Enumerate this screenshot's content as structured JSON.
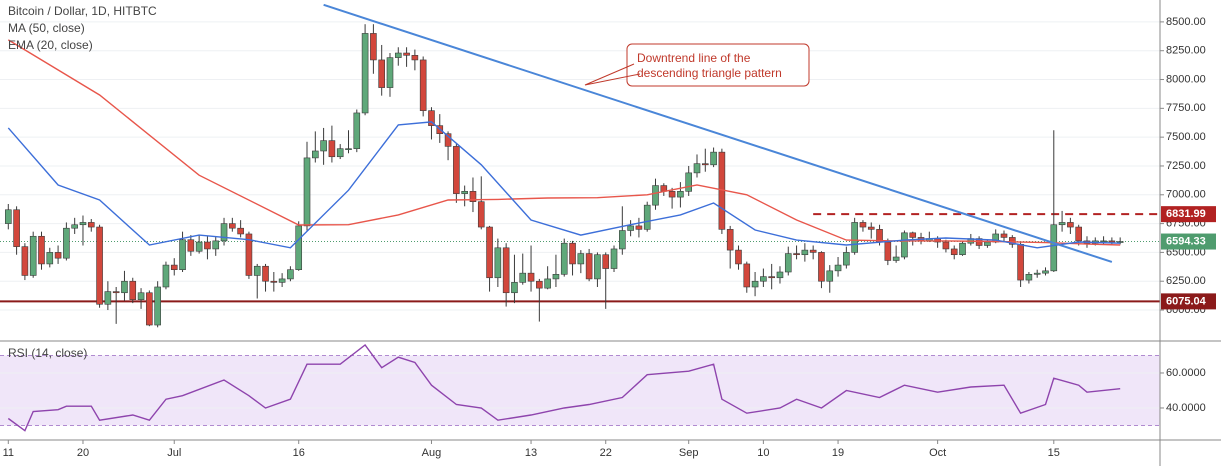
{
  "chart_data": [
    {
      "type": "candlestick",
      "title": "Bitcoin / Dollar, 1D, HITBTC",
      "x": [
        0,
        1,
        2,
        3,
        4,
        5,
        6,
        7,
        8,
        9,
        10,
        11,
        12,
        13,
        14,
        15,
        16,
        17,
        18,
        19,
        20,
        21,
        22,
        23,
        24,
        25,
        26,
        27,
        28,
        29,
        30,
        31,
        32,
        33,
        34,
        35,
        36,
        37,
        38,
        39,
        40,
        41,
        42,
        43,
        44,
        45,
        46,
        47,
        48,
        49,
        50,
        51,
        52,
        53,
        54,
        55,
        56,
        57,
        58,
        59,
        60,
        61,
        62,
        63,
        64,
        65,
        66,
        67,
        68,
        69,
        70,
        71,
        72,
        73,
        74,
        75,
        76,
        77,
        78,
        79,
        80,
        81,
        82,
        83,
        84,
        85,
        86,
        87,
        88,
        89,
        90,
        91,
        92,
        93,
        94,
        95,
        96,
        97,
        98,
        99,
        100,
        101,
        102,
        103,
        104,
        105,
        106,
        107,
        108,
        109,
        110,
        111,
        112,
        113,
        114,
        115,
        116,
        117,
        118,
        119,
        120,
        121,
        122,
        123,
        124,
        125,
        126,
        127,
        128,
        129,
        130,
        131,
        132,
        133,
        134
      ],
      "open": [
        6750,
        6870,
        6550,
        6300,
        6640,
        6400,
        6500,
        6450,
        6710,
        6740,
        6760,
        6720,
        6050,
        6160,
        6150,
        6250,
        6090,
        6150,
        5870,
        6200,
        6390,
        6350,
        6610,
        6510,
        6590,
        6530,
        6600,
        6750,
        6710,
        6660,
        6300,
        6380,
        6250,
        6240,
        6270,
        6350,
        6730,
        7320,
        7380,
        7470,
        7330,
        7400,
        7400,
        7710,
        8400,
        8170,
        7930,
        8190,
        8230,
        8210,
        8170,
        7730,
        7600,
        7530,
        7420,
        7010,
        7030,
        6940,
        6720,
        6280,
        6540,
        6150,
        6240,
        6320,
        6250,
        6190,
        6270,
        6310,
        6580,
        6400,
        6490,
        6270,
        6480,
        6360,
        6530,
        6690,
        6730,
        6700,
        6910,
        7080,
        7030,
        6980,
        7030,
        7190,
        7270,
        7260,
        7370,
        6700,
        6520,
        6400,
        6200,
        6250,
        6290,
        6280,
        6330,
        6490,
        6480,
        6520,
        6500,
        6250,
        6340,
        6390,
        6500,
        6760,
        6720,
        6700,
        6590,
        6430,
        6460,
        6670,
        6630,
        6600,
        6620,
        6590,
        6530,
        6480,
        6580,
        6620,
        6560,
        6590,
        6660,
        6630,
        6570,
        6260,
        6310,
        6320,
        6340,
        6740,
        6760,
        6720,
        6600,
        6580,
        6600,
        6600,
        6590
      ],
      "high": [
        6920,
        6900,
        6580,
        6680,
        6680,
        6540,
        6560,
        6760,
        6800,
        6820,
        6790,
        6740,
        6250,
        6200,
        6340,
        6280,
        6190,
        6170,
        6250,
        6420,
        6450,
        6680,
        6650,
        6650,
        6640,
        6640,
        6800,
        6800,
        6780,
        6680,
        6400,
        6400,
        6330,
        6320,
        6380,
        6770,
        7460,
        7550,
        7580,
        7600,
        7440,
        7560,
        7740,
        8480,
        8480,
        8300,
        8230,
        8280,
        8280,
        8260,
        8200,
        7760,
        7700,
        7550,
        7440,
        7080,
        7150,
        7160,
        6730,
        6620,
        6580,
        6480,
        6490,
        6560,
        6270,
        6380,
        6480,
        6620,
        6600,
        6520,
        6530,
        6500,
        6500,
        6560,
        6900,
        6780,
        6800,
        6940,
        7140,
        7100,
        7060,
        7110,
        7250,
        7350,
        7400,
        7410,
        7400,
        6730,
        6560,
        6420,
        6330,
        6360,
        6400,
        6380,
        6550,
        6560,
        6580,
        6560,
        6510,
        6390,
        6460,
        6550,
        6800,
        6780,
        6760,
        6740,
        6620,
        6560,
        6690,
        6680,
        6670,
        6680,
        6640,
        6610,
        6560,
        6600,
        6660,
        6640,
        6610,
        6700,
        6690,
        6650,
        6590,
        6330,
        6350,
        6370,
        7560,
        6860,
        6800,
        6740,
        6640,
        6630,
        6640,
        6630,
        6630
      ],
      "low": [
        6700,
        6480,
        6260,
        6280,
        6350,
        6370,
        6400,
        6430,
        6660,
        6560,
        6680,
        6020,
        6000,
        5880,
        6080,
        6060,
        6010,
        5860,
        5850,
        6180,
        6300,
        6330,
        6470,
        6490,
        6440,
        6470,
        6560,
        6680,
        6630,
        6270,
        6100,
        6160,
        6160,
        6200,
        6250,
        6340,
        6690,
        7280,
        7260,
        7280,
        7310,
        7360,
        7370,
        7690,
        8050,
        7860,
        7850,
        8120,
        8110,
        8080,
        7680,
        7480,
        7450,
        7300,
        6930,
        6900,
        6850,
        6700,
        6160,
        6200,
        6030,
        6060,
        6220,
        6160,
        5900,
        6180,
        6200,
        6290,
        6300,
        6320,
        6250,
        6200,
        6010,
        6330,
        6480,
        6640,
        6630,
        6680,
        6870,
        6990,
        6880,
        6890,
        6990,
        7150,
        7200,
        7240,
        6660,
        6360,
        6350,
        6150,
        6120,
        6200,
        6180,
        6230,
        6300,
        6440,
        6420,
        6440,
        6190,
        6150,
        6290,
        6360,
        6480,
        6680,
        6620,
        6560,
        6390,
        6410,
        6440,
        6560,
        6570,
        6590,
        6540,
        6500,
        6440,
        6470,
        6560,
        6530,
        6540,
        6580,
        6590,
        6540,
        6200,
        6230,
        6280,
        6300,
        6330,
        6680,
        6660,
        6560,
        6540,
        6560,
        6570,
        6560,
        6570
      ],
      "close": [
        6870,
        6550,
        6300,
        6640,
        6400,
        6500,
        6450,
        6710,
        6740,
        6760,
        6720,
        6050,
        6160,
        6150,
        6250,
        6090,
        6150,
        5870,
        6200,
        6390,
        6350,
        6610,
        6510,
        6590,
        6530,
        6600,
        6750,
        6710,
        6660,
        6300,
        6380,
        6250,
        6240,
        6270,
        6350,
        6730,
        7320,
        7380,
        7470,
        7330,
        7400,
        7400,
        7710,
        8400,
        8170,
        7930,
        8190,
        8230,
        8210,
        8170,
        7730,
        7600,
        7530,
        7420,
        7010,
        7030,
        6940,
        6720,
        6280,
        6540,
        6150,
        6240,
        6320,
        6250,
        6190,
        6270,
        6310,
        6580,
        6400,
        6490,
        6270,
        6480,
        6360,
        6530,
        6690,
        6730,
        6700,
        6910,
        7080,
        7030,
        6980,
        7030,
        7190,
        7270,
        7260,
        7370,
        6700,
        6520,
        6400,
        6200,
        6250,
        6290,
        6280,
        6330,
        6490,
        6480,
        6520,
        6500,
        6250,
        6340,
        6390,
        6500,
        6760,
        6720,
        6700,
        6590,
        6430,
        6460,
        6670,
        6630,
        6600,
        6620,
        6590,
        6530,
        6480,
        6580,
        6620,
        6560,
        6590,
        6660,
        6630,
        6570,
        6260,
        6310,
        6320,
        6340,
        6740,
        6760,
        6720,
        6600,
        6580,
        6600,
        6600,
        6590,
        6594.33
      ],
      "up_color": "#5fa87a",
      "down_color": "#d2473c",
      "series": [
        {
          "name": "MA (50, close)",
          "color": "#e8564b",
          "x": [
            0,
            11,
            23,
            35,
            41,
            47,
            53,
            59,
            65,
            71,
            77,
            83,
            89,
            95,
            101,
            107,
            113,
            119,
            125,
            131,
            134
          ],
          "values": [
            8344,
            7866,
            7170,
            6738,
            6740,
            6825,
            6955,
            6960,
            6972,
            6975,
            7000,
            7085,
            7000,
            6781,
            6607,
            6600,
            6600,
            6595,
            6585,
            6570,
            6564
          ]
        },
        {
          "name": "EMA (20, close)",
          "color": "#3d6fd9",
          "x": [
            0,
            6,
            11,
            17,
            23,
            29,
            34,
            41,
            47,
            51,
            57,
            63,
            69,
            75,
            81,
            85,
            90,
            95,
            101,
            108,
            113,
            119,
            124,
            129,
            134
          ],
          "values": [
            7580,
            7085,
            6955,
            6564,
            6650,
            6610,
            6540,
            7040,
            7606,
            7632,
            7260,
            6781,
            6650,
            6740,
            6825,
            6929,
            6694,
            6607,
            6564,
            6607,
            6625,
            6607,
            6540,
            6590,
            6580
          ]
        }
      ],
      "hlines": [
        {
          "value": 6831.99,
          "color": "#b22222",
          "dashed": true,
          "x_start": 97
        },
        {
          "value": 6075.04,
          "color": "#8b1a1a",
          "dashed": false,
          "x_start": -1
        }
      ],
      "last_price_color": "#4f9c6e",
      "trendline": {
        "color": "#4a86d8",
        "x": [
          38,
          133
        ],
        "y": [
          8648,
          6417
        ]
      },
      "annotation": [
        "Downtrend line of the",
        "descending triangle pattern"
      ],
      "xlim": [
        -1,
        138.8
      ],
      "ylim": [
        5740,
        8690
      ],
      "yticks": [
        {
          "value": 6000,
          "label": "6000.00"
        },
        {
          "value": 6250,
          "label": "6250.00"
        },
        {
          "value": 6500,
          "label": "6500.00"
        },
        {
          "value": 6750,
          "label": "6750.00"
        },
        {
          "value": 7000,
          "label": "7000.00"
        },
        {
          "value": 7250,
          "label": "7250.00"
        },
        {
          "value": 7500,
          "label": "7500.00"
        },
        {
          "value": 7750,
          "label": "7750.00"
        },
        {
          "value": 8000,
          "label": "8000.00"
        },
        {
          "value": 8250,
          "label": "8250.00"
        },
        {
          "value": 8500,
          "label": "8500.00"
        }
      ],
      "grid": true
    },
    {
      "type": "line",
      "title": "RSI (14, close)",
      "series": [
        {
          "name": "RSI (14, close)",
          "color": "#8e44ad",
          "x": [
            0,
            2,
            3,
            6,
            7,
            10,
            11,
            15,
            17,
            19,
            21,
            26,
            29,
            31,
            34,
            36,
            40,
            43,
            45,
            47,
            49,
            51,
            54,
            57,
            59,
            63,
            67,
            70,
            74,
            77,
            82,
            85,
            86,
            89,
            93,
            95,
            98,
            101,
            105,
            108,
            112,
            116,
            120,
            122,
            125,
            126,
            129,
            130,
            134
          ],
          "values": [
            34,
            27,
            38,
            39,
            41,
            41,
            33,
            36,
            33,
            45,
            47,
            56,
            47,
            40,
            45,
            65,
            65,
            76,
            63,
            69,
            66,
            53,
            42,
            40,
            33,
            36,
            40,
            42,
            46,
            59,
            61,
            65,
            45,
            37,
            40,
            45,
            40,
            50,
            46,
            53,
            49,
            52,
            53,
            37,
            42,
            57,
            53,
            49,
            51
          ]
        }
      ],
      "bands": [
        30,
        70
      ],
      "band_color": "#e9dcf7",
      "xlim": [
        -1,
        138.8
      ],
      "ylim": [
        21.7,
        77.7
      ],
      "yticks": [
        {
          "value": 40,
          "label": "40.0000"
        },
        {
          "value": 60,
          "label": "60.0000"
        }
      ],
      "xticks": [
        {
          "value": 0,
          "label": "11"
        },
        {
          "value": 9,
          "label": "20"
        },
        {
          "value": 20,
          "label": "Jul"
        },
        {
          "value": 35,
          "label": "16"
        },
        {
          "value": 51,
          "label": "Aug"
        },
        {
          "value": 63,
          "label": "13"
        },
        {
          "value": 72,
          "label": "22"
        },
        {
          "value": 82,
          "label": "Sep"
        },
        {
          "value": 91,
          "label": "10"
        },
        {
          "value": 100,
          "label": "19"
        },
        {
          "value": 112,
          "label": "Oct"
        },
        {
          "value": 126,
          "label": "15"
        }
      ],
      "grid": true
    }
  ]
}
